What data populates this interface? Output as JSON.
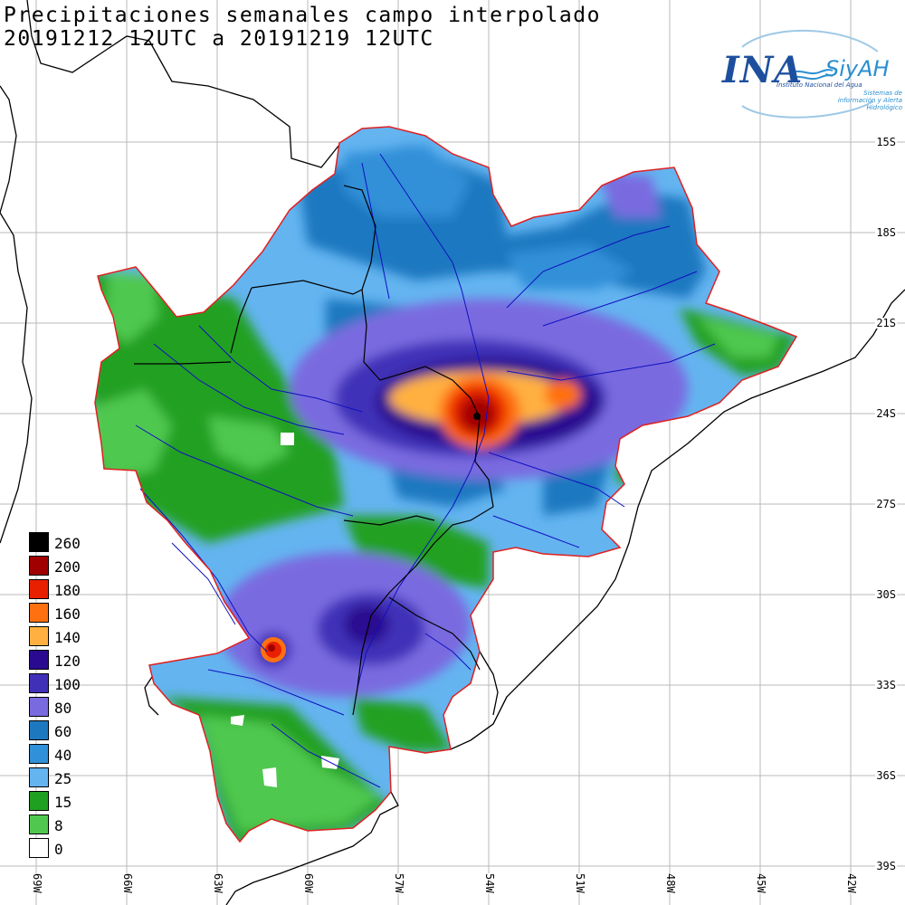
{
  "title": {
    "line1": "Precipitaciones semanales campo interpolado",
    "line2": "20191212 12UTC a 20191219 12UTC"
  },
  "logo": {
    "name": "INA",
    "product": "SiyAH",
    "institution": "Instituto Nacional del Agua",
    "tagline": "Sistemas de información y Alerta Hidrológico"
  },
  "lat_labels": [
    "15S",
    "18S",
    "21S",
    "24S",
    "27S",
    "30S",
    "33S",
    "36S",
    "39S"
  ],
  "lon_labels": [
    "69W",
    "66W",
    "63W",
    "60W",
    "57W",
    "54W",
    "51W",
    "48W",
    "45W",
    "42W"
  ],
  "legend": [
    {
      "value": "260",
      "color": "#000000"
    },
    {
      "value": "200",
      "color": "#a00000"
    },
    {
      "value": "180",
      "color": "#e82000"
    },
    {
      "value": "160",
      "color": "#ff7010"
    },
    {
      "value": "140",
      "color": "#ffb040"
    },
    {
      "value": "120",
      "color": "#2a0a90"
    },
    {
      "value": "100",
      "color": "#4030b8"
    },
    {
      "value": "80",
      "color": "#7a6ae0"
    },
    {
      "value": "60",
      "color": "#1e78c0"
    },
    {
      "value": "40",
      "color": "#3090d8"
    },
    {
      "value": "25",
      "color": "#64b4f0"
    },
    {
      "value": "15",
      "color": "#20a020"
    },
    {
      "value": "8",
      "color": "#50c850"
    },
    {
      "value": "0",
      "color": "#ffffff"
    }
  ],
  "colors": {
    "basin_outline": "#e02020",
    "rivers": "#1010c0",
    "borders": "#000000",
    "grid": "#b0b0b0"
  }
}
